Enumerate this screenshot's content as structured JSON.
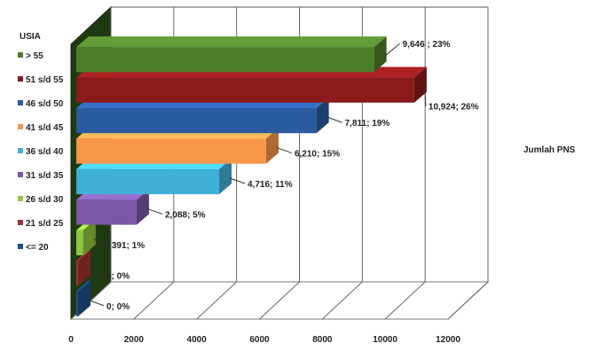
{
  "chart_data": {
    "type": "bar",
    "orientation": "horizontal",
    "three_d": true,
    "legend_title": "USIA",
    "series_label": "Jumlah PNS",
    "categories": [
      "<= 20",
      "21 s/d 25",
      "26 s/d 30",
      "31 s/d 35",
      "36 s/d 40",
      "41 s/d 45",
      "46 s/d 50",
      "51 s/d 55",
      "> 55"
    ],
    "values": [
      0,
      0,
      391,
      2088,
      4716,
      6210,
      7811,
      10924,
      9646
    ],
    "data_labels": [
      "0; 0%",
      "0; 0%",
      "391; 1%",
      "2,088; 5%",
      "4,716; 11%",
      "6,210; 15%",
      "7,811; 19%",
      "10,924; 26%",
      "9,646 ; 23%"
    ],
    "colors": [
      "#1f4e8c",
      "#a0312e",
      "#8ec63f",
      "#7b58a6",
      "#3fb0d8",
      "#f79646",
      "#2a5aa0",
      "#8b1a1a",
      "#4e7d2a"
    ],
    "xlim": [
      0,
      12000
    ],
    "x_ticks": [
      "0",
      "2000",
      "4000",
      "6000",
      "8000",
      "10000",
      "12000"
    ],
    "grid": true,
    "legend_position": "left"
  }
}
